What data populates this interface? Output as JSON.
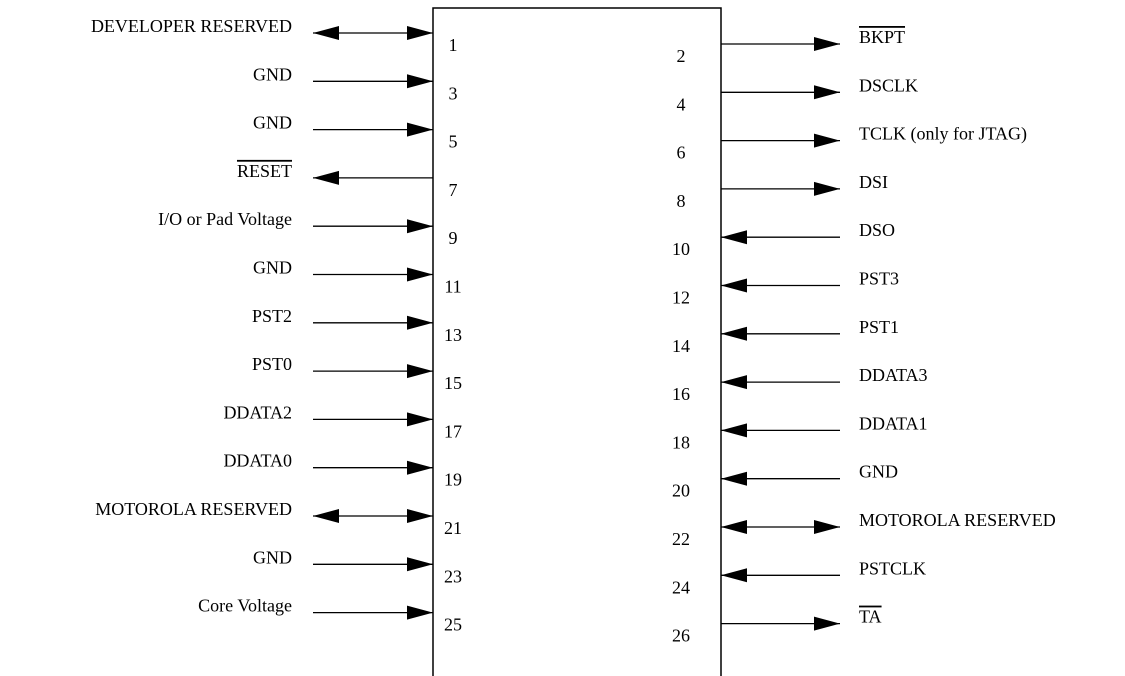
{
  "left_pins": [
    {
      "number": "1",
      "label": "DEVELOPER RESERVED",
      "direction": "bidirectional",
      "overline": false
    },
    {
      "number": "3",
      "label": "GND",
      "direction": "in",
      "overline": false
    },
    {
      "number": "5",
      "label": "GND",
      "direction": "in",
      "overline": false
    },
    {
      "number": "7",
      "label": "RESET",
      "direction": "out",
      "overline": true
    },
    {
      "number": "9",
      "label": "I/O or Pad Voltage",
      "direction": "in",
      "overline": false
    },
    {
      "number": "11",
      "label": "GND",
      "direction": "in",
      "overline": false
    },
    {
      "number": "13",
      "label": "PST2",
      "direction": "in",
      "overline": false
    },
    {
      "number": "15",
      "label": "PST0",
      "direction": "in",
      "overline": false
    },
    {
      "number": "17",
      "label": "DDATA2",
      "direction": "in",
      "overline": false
    },
    {
      "number": "19",
      "label": "DDATA0",
      "direction": "in",
      "overline": false
    },
    {
      "number": "21",
      "label": "MOTOROLA RESERVED",
      "direction": "bidirectional",
      "overline": false
    },
    {
      "number": "23",
      "label": "GND",
      "direction": "in",
      "overline": false
    },
    {
      "number": "25",
      "label": "Core Voltage",
      "direction": "in",
      "overline": false
    }
  ],
  "right_pins": [
    {
      "number": "2",
      "label": "BKPT",
      "direction": "out",
      "overline": true
    },
    {
      "number": "4",
      "label": "DSCLK",
      "direction": "out",
      "overline": false
    },
    {
      "number": "6",
      "label": "TCLK (only for JTAG)",
      "direction": "out",
      "overline": false
    },
    {
      "number": "8",
      "label": "DSI",
      "direction": "out",
      "overline": false
    },
    {
      "number": "10",
      "label": "DSO",
      "direction": "in",
      "overline": false
    },
    {
      "number": "12",
      "label": "PST3",
      "direction": "in",
      "overline": false
    },
    {
      "number": "14",
      "label": "PST1",
      "direction": "in",
      "overline": false
    },
    {
      "number": "16",
      "label": "DDATA3",
      "direction": "in",
      "overline": false
    },
    {
      "number": "18",
      "label": "DDATA1",
      "direction": "in",
      "overline": false
    },
    {
      "number": "20",
      "label": "GND",
      "direction": "in",
      "overline": false
    },
    {
      "number": "22",
      "label": "MOTOROLA RESERVED",
      "direction": "bidirectional",
      "overline": false
    },
    {
      "number": "24",
      "label": "PSTCLK",
      "direction": "in",
      "overline": false
    },
    {
      "number": "26",
      "label": "TA",
      "direction": "out",
      "overline": true
    }
  ]
}
